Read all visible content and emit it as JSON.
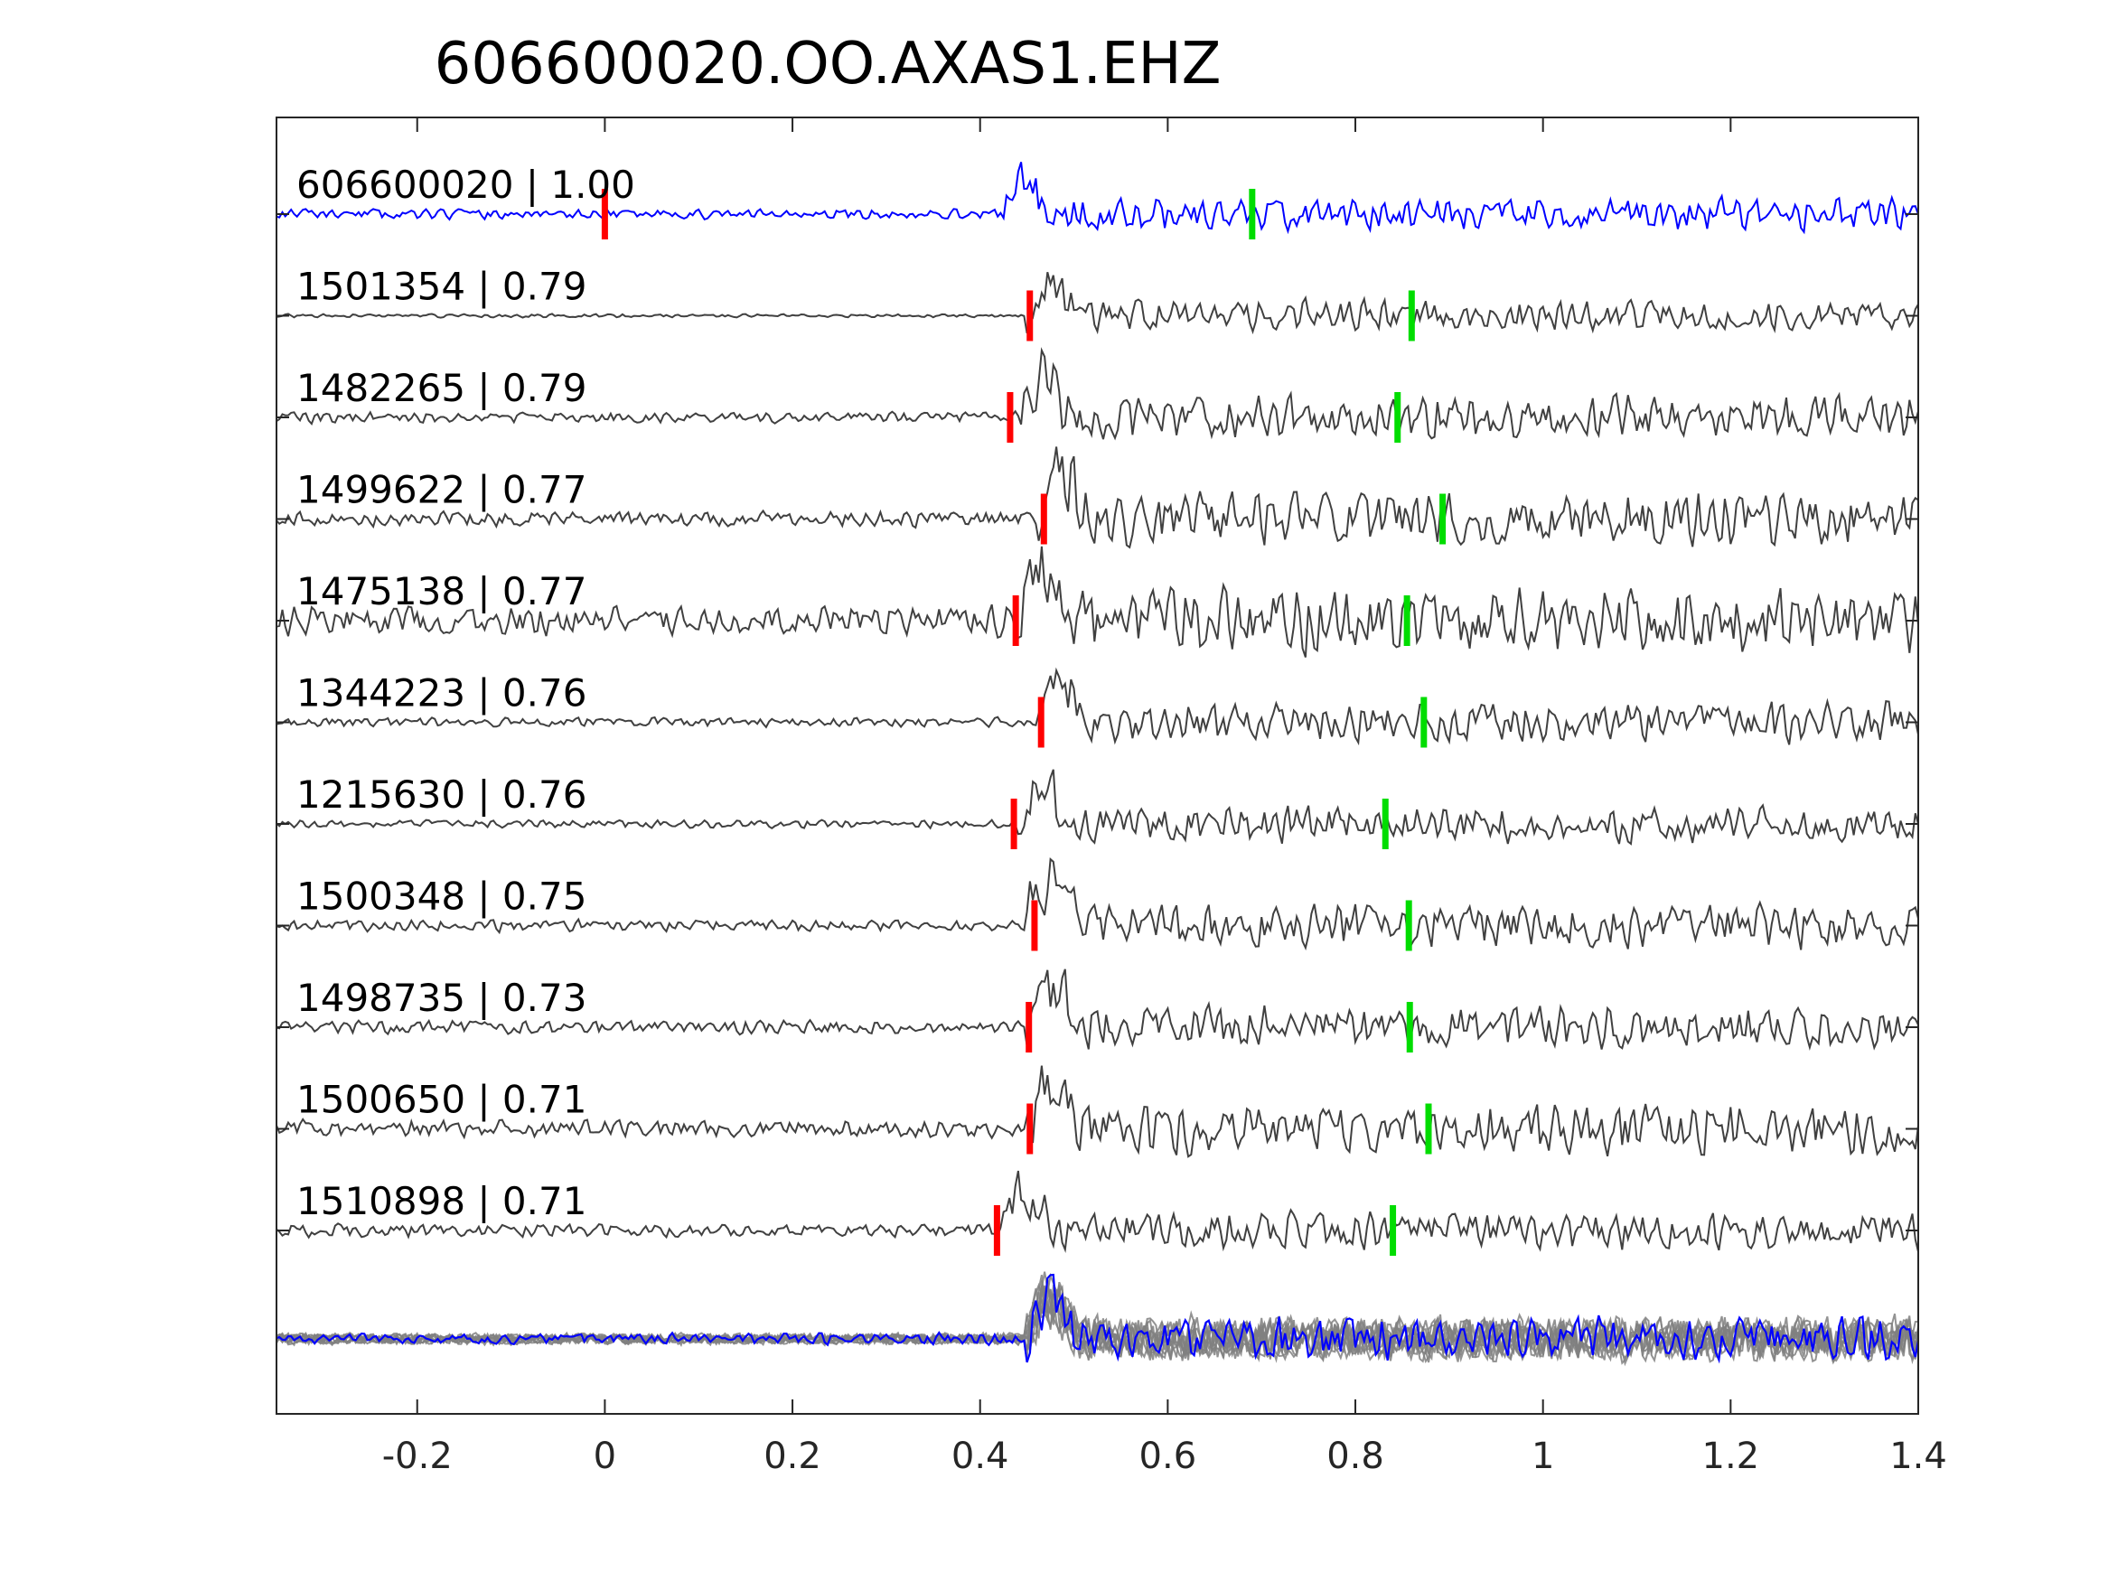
{
  "chart_data": {
    "type": "line",
    "title": "606600020.OO.AXAS1.EHZ",
    "xlabel": "",
    "ylabel": "",
    "xlim": [
      -0.35,
      1.4
    ],
    "x_ticks": [
      {
        "value": -0.2,
        "label": "-0.2"
      },
      {
        "value": 0,
        "label": "0"
      },
      {
        "value": 0.2,
        "label": "0.2"
      },
      {
        "value": 0.4,
        "label": "0.4"
      },
      {
        "value": 0.6,
        "label": "0.6"
      },
      {
        "value": 0.8,
        "label": "0.8"
      },
      {
        "value": 1,
        "label": "1"
      },
      {
        "value": 1.2,
        "label": "1.2"
      },
      {
        "value": 1.4,
        "label": "1.4"
      }
    ],
    "grid": false,
    "colors": {
      "template": "#0000ff",
      "match": "#404040",
      "stack": "#808080",
      "p_pick": "#ff0000",
      "s_pick": "#00dd00",
      "axes": "#262626"
    },
    "series": [
      {
        "name": "606600020",
        "cc": "1.00",
        "p_pick": 0.0,
        "s_pick": 0.69,
        "signal_onset": 0.42,
        "amp_noise": 0.22,
        "amp_signal": 0.55,
        "seed": 11
      },
      {
        "name": "1501354",
        "cc": "0.79",
        "p_pick": 0.453,
        "s_pick": 0.86,
        "signal_onset": 0.45,
        "amp_noise": 0.08,
        "amp_signal": 0.6,
        "seed": 23
      },
      {
        "name": "1482265",
        "cc": "0.79",
        "p_pick": 0.432,
        "s_pick": 0.845,
        "signal_onset": 0.44,
        "amp_noise": 0.25,
        "amp_signal": 0.75,
        "seed": 37
      },
      {
        "name": "1499622",
        "cc": "0.77",
        "p_pick": 0.468,
        "s_pick": 0.893,
        "signal_onset": 0.46,
        "amp_noise": 0.35,
        "amp_signal": 0.85,
        "seed": 41
      },
      {
        "name": "1475138",
        "cc": "0.77",
        "p_pick": 0.438,
        "s_pick": 0.855,
        "signal_onset": 0.44,
        "amp_noise": 0.65,
        "amp_signal": 0.8,
        "seed": 53
      },
      {
        "name": "1344223",
        "cc": "0.76",
        "p_pick": 0.465,
        "s_pick": 0.873,
        "signal_onset": 0.46,
        "amp_noise": 0.22,
        "amp_signal": 0.7,
        "seed": 67
      },
      {
        "name": "1215630",
        "cc": "0.76",
        "p_pick": 0.436,
        "s_pick": 0.832,
        "signal_onset": 0.44,
        "amp_noise": 0.18,
        "amp_signal": 0.7,
        "seed": 71
      },
      {
        "name": "1500348",
        "cc": "0.75",
        "p_pick": 0.458,
        "s_pick": 0.857,
        "signal_onset": 0.45,
        "amp_noise": 0.25,
        "amp_signal": 0.75,
        "seed": 83
      },
      {
        "name": "1498735",
        "cc": "0.73",
        "p_pick": 0.452,
        "s_pick": 0.858,
        "signal_onset": 0.45,
        "amp_noise": 0.3,
        "amp_signal": 0.7,
        "seed": 97
      },
      {
        "name": "1500650",
        "cc": "0.71",
        "p_pick": 0.453,
        "s_pick": 0.878,
        "signal_onset": 0.45,
        "amp_noise": 0.4,
        "amp_signal": 0.75,
        "seed": 101
      },
      {
        "name": "1510898",
        "cc": "0.71",
        "p_pick": 0.418,
        "s_pick": 0.84,
        "signal_onset": 0.42,
        "amp_noise": 0.3,
        "amp_signal": 0.55,
        "seed": 113
      }
    ],
    "stack": {
      "onset": 0.45,
      "amp_noise": 0.22,
      "amp_signal": 0.65
    }
  }
}
